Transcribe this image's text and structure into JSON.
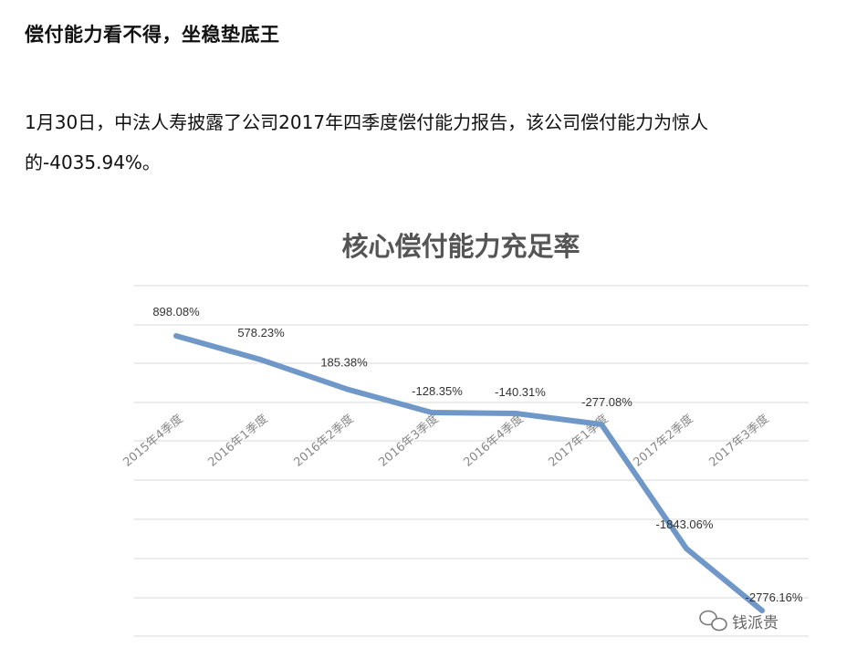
{
  "article": {
    "headline": "偿付能力看不得，坐稳垫底王",
    "paragraph": "1月30日，中法人寿披露了公司2017年四季度偿付能力报告，该公司偿付能力为惊人的-4035.94%。"
  },
  "watermark": {
    "text": "钱派贵",
    "icon": "wechat-icon"
  },
  "colors": {
    "line": "#6f98c8",
    "grid": "#d9d9d9"
  },
  "chart_data": {
    "type": "line",
    "title": "核心偿付能力充足率",
    "categories": [
      "2015年4季度",
      "2016年1季度",
      "2016年2季度",
      "2016年3季度",
      "2016年4季度",
      "2017年1季度",
      "2017年2季度",
      "2017年3季度"
    ],
    "values": [
      898.08,
      578.23,
      185.38,
      -128.35,
      -140.31,
      -277.08,
      -1843.06,
      -2776.16
    ],
    "labels": [
      "898.08%",
      "578.23%",
      "185.38%",
      "-128.35%",
      "-140.31%",
      "-277.08%",
      "-1843.06%",
      "-2776.16%"
    ],
    "grid": true,
    "legend": "none"
  }
}
